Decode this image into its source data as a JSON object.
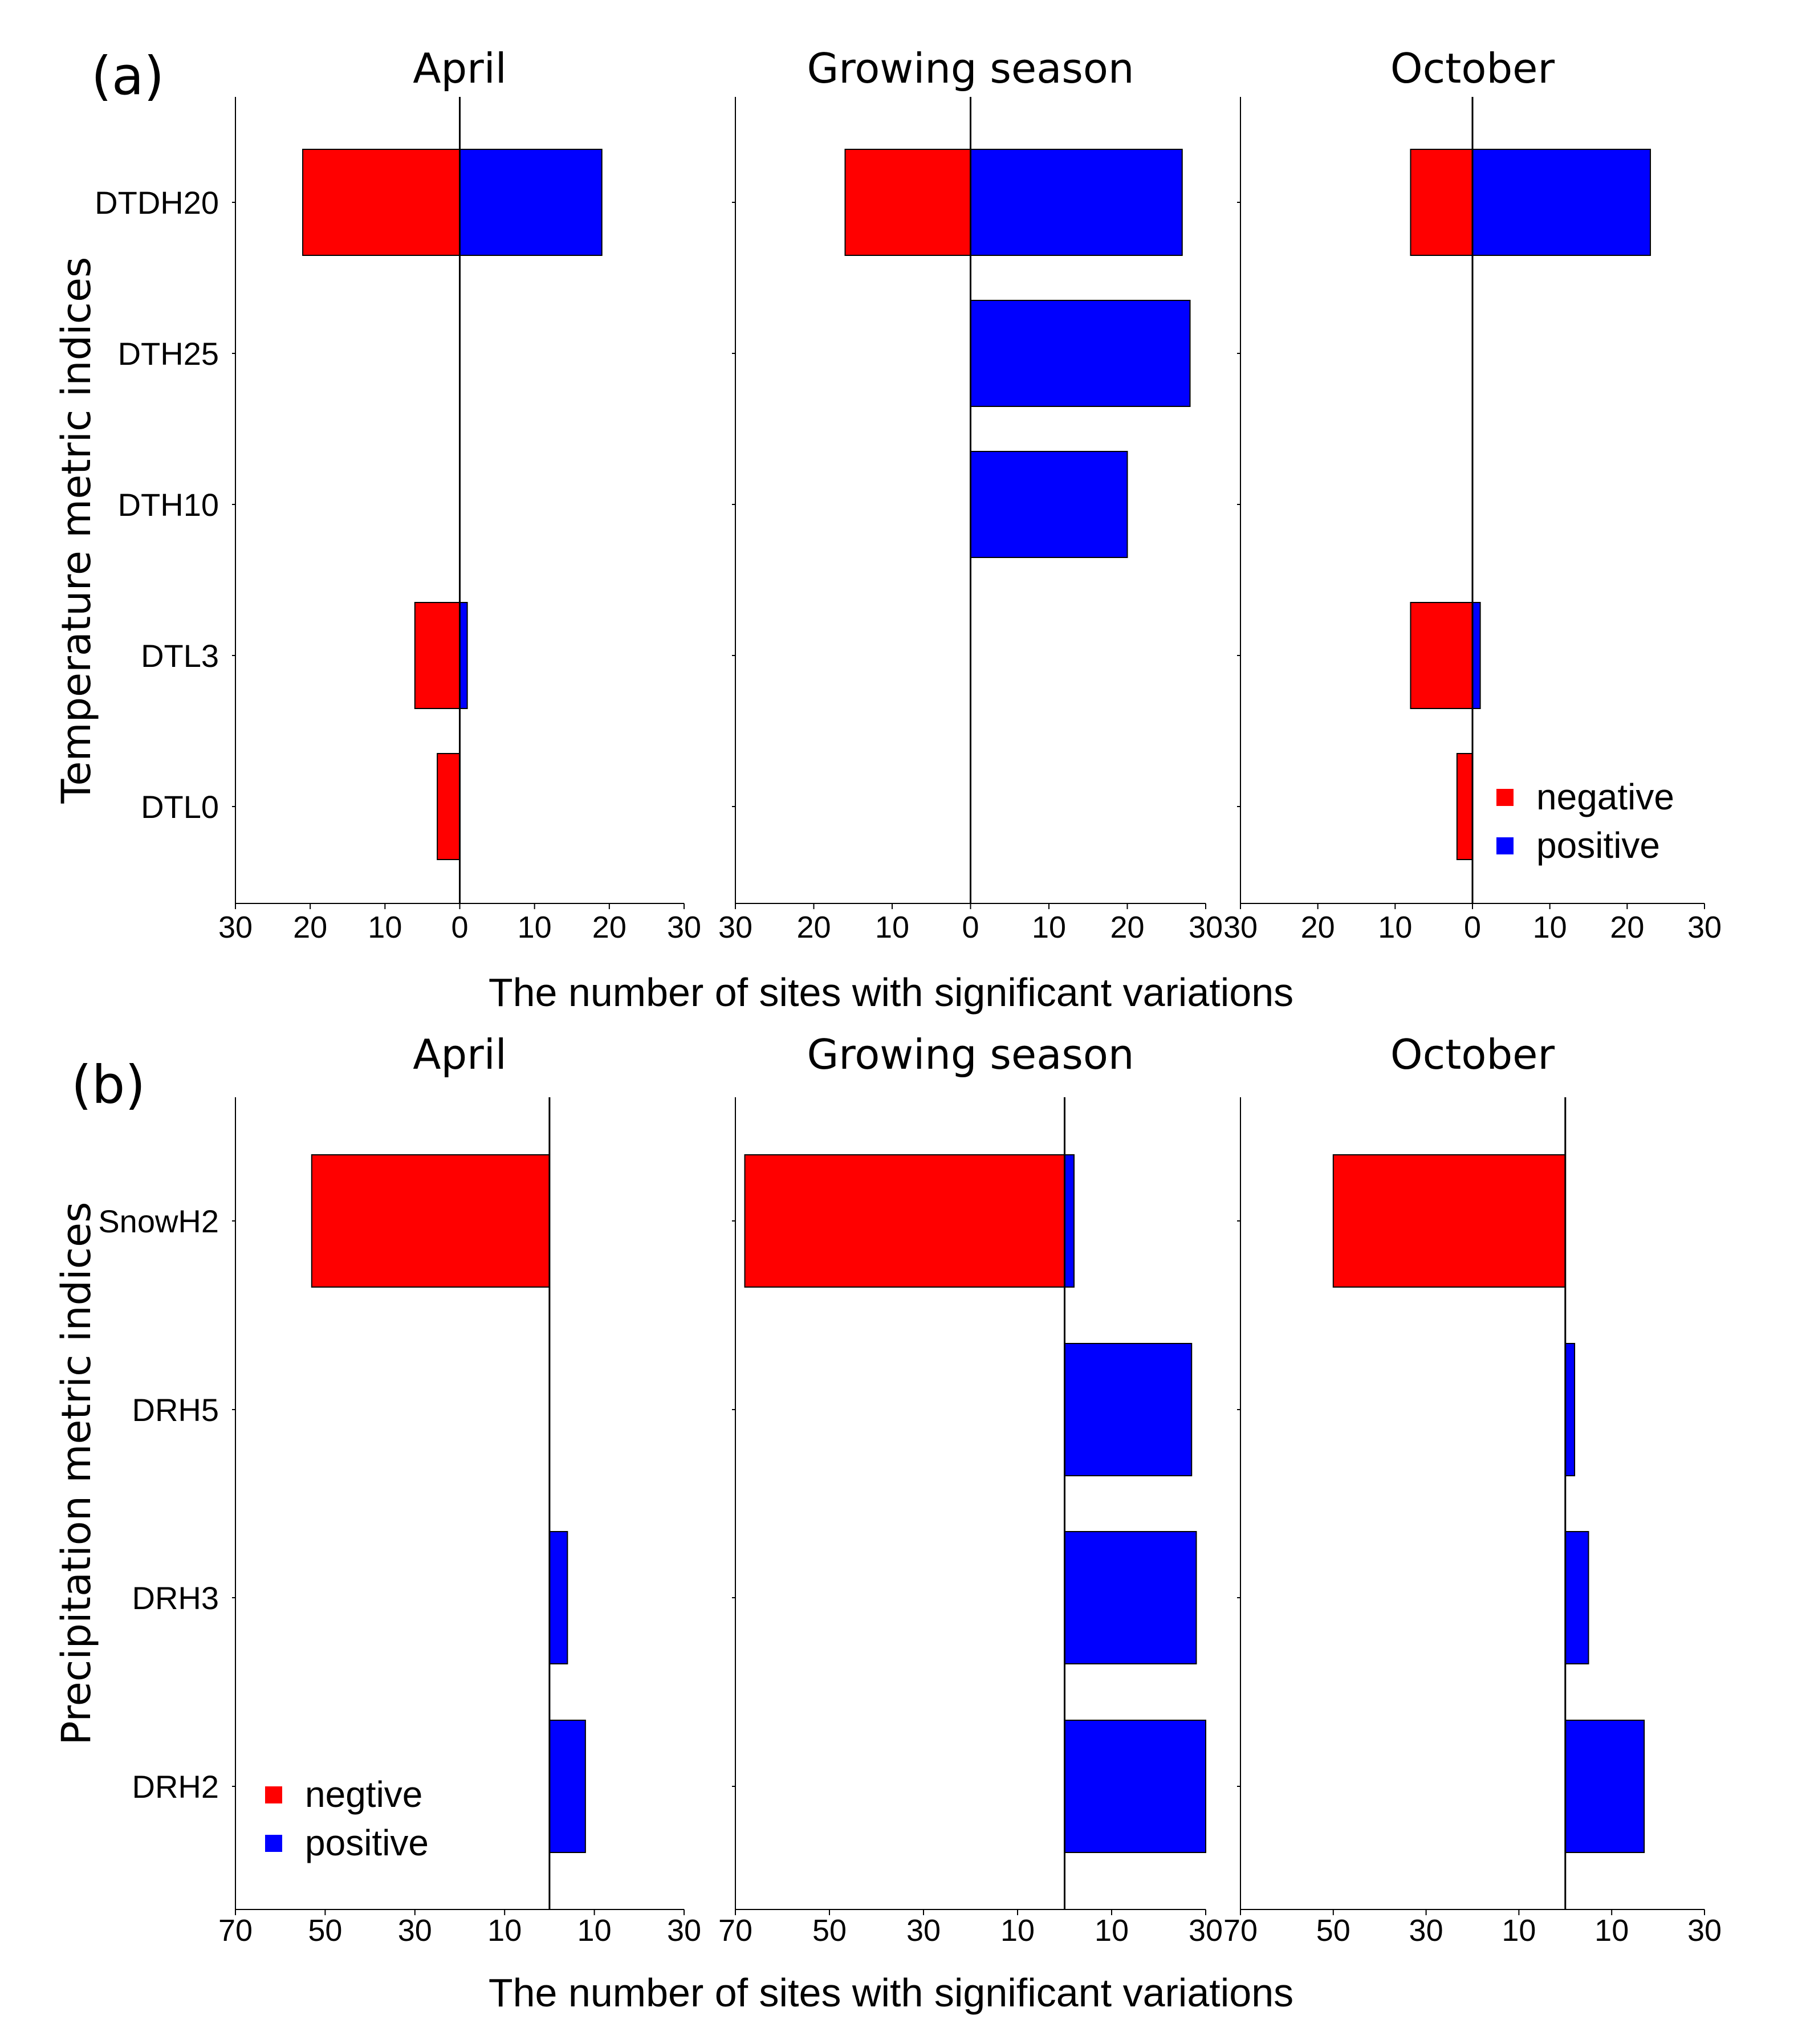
{
  "figure": {
    "panels": [
      {
        "label": "(a)",
        "ylabel": "Temperature metric indices",
        "xlabel": "The number of sites with significant variations",
        "chart_index": 0
      },
      {
        "label": "(b)",
        "ylabel": "Precipitation metric indices",
        "xlabel": "The number of sites with significant variations",
        "chart_index": 1
      }
    ]
  },
  "chart_data": [
    {
      "type": "bar",
      "orientation": "horizontal",
      "layout": "diverging",
      "panel": "(a)",
      "ylabel": "Temperature metric indices",
      "xlabel": "The number of sites with significant variations",
      "categories": [
        "DTDH20",
        "DTH25",
        "DTH10",
        "DTL3",
        "DTL0"
      ],
      "xlim": [
        -30,
        30
      ],
      "xticks": [
        -30,
        -20,
        -10,
        0,
        10,
        20,
        30
      ],
      "xtick_labels": [
        "30",
        "20",
        "10",
        "0",
        "10",
        "20",
        "30"
      ],
      "colors": {
        "negative": "#ff0000",
        "positive": "#0000ff"
      },
      "legend": {
        "labels": [
          "negative",
          "positive"
        ],
        "location": "lower-right of October subplot"
      },
      "subplots": [
        {
          "title": "April",
          "negative": [
            21,
            0,
            0,
            6,
            3
          ],
          "positive": [
            19,
            0,
            0,
            1,
            0
          ]
        },
        {
          "title": "Growing season",
          "negative": [
            16,
            0,
            0,
            0,
            0
          ],
          "positive": [
            27,
            28,
            20,
            0,
            0
          ]
        },
        {
          "title": "October",
          "negative": [
            8,
            0,
            0,
            8,
            2
          ],
          "positive": [
            23,
            0,
            0,
            1,
            0
          ]
        }
      ]
    },
    {
      "type": "bar",
      "orientation": "horizontal",
      "layout": "diverging",
      "panel": "(b)",
      "ylabel": "Precipitation metric indices",
      "xlabel": "The number of sites with significant variations",
      "categories": [
        "SnowH2",
        "DRH5",
        "DRH3",
        "DRH2"
      ],
      "xlim": [
        -70,
        30
      ],
      "xticks": [
        -70,
        -50,
        -30,
        -10,
        10,
        30
      ],
      "xtick_labels": [
        "70",
        "50",
        "30",
        "10",
        "10",
        "30"
      ],
      "colors": {
        "negative": "#ff0000",
        "positive": "#0000ff"
      },
      "legend": {
        "labels": [
          "negtive",
          "positive"
        ],
        "location": "lower-left of April subplot"
      },
      "subplots": [
        {
          "title": "April",
          "negative": [
            53,
            0,
            0,
            0
          ],
          "positive": [
            0,
            0,
            4,
            8
          ]
        },
        {
          "title": "Growing season",
          "negative": [
            68,
            0,
            0,
            0
          ],
          "positive": [
            2,
            27,
            28,
            30
          ]
        },
        {
          "title": "October",
          "negative": [
            50,
            0,
            0,
            0
          ],
          "positive": [
            0,
            2,
            5,
            17
          ]
        }
      ]
    }
  ]
}
